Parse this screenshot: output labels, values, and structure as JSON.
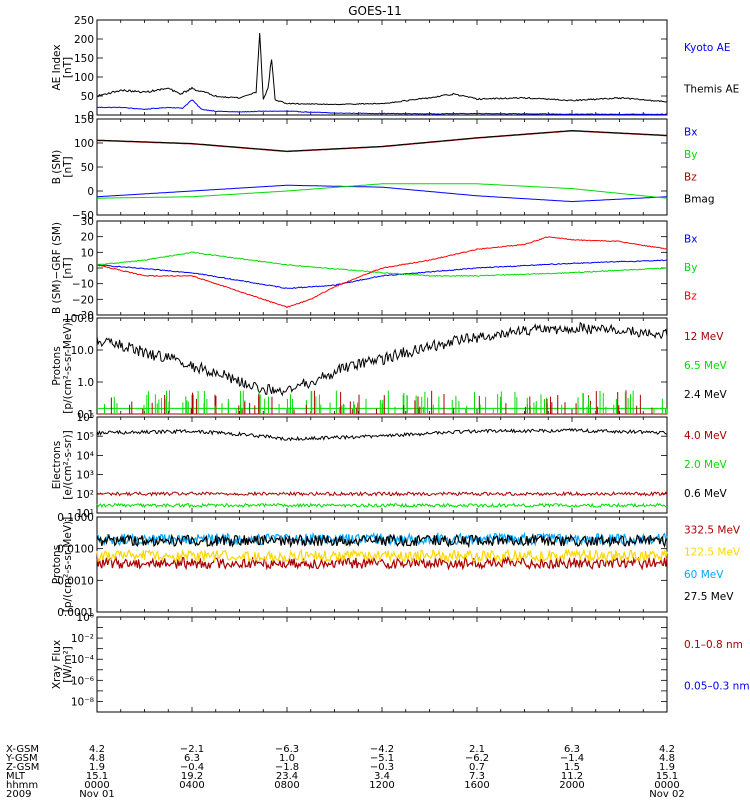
{
  "title": "GOES-11",
  "colors": {
    "black": "#000000",
    "blue": "#0000ff",
    "green": "#00dd00",
    "red": "#ff0000",
    "darkred": "#aa0000",
    "yellow": "#ffd700",
    "cyan": "#00a8ff"
  },
  "chart_data": [
    {
      "type": "line",
      "ylabel": [
        "AE Index",
        "[nT]"
      ],
      "ylim": [
        0,
        250
      ],
      "scale": "linear",
      "ticks": [
        0,
        50,
        100,
        150,
        200,
        250
      ],
      "labels": [
        "0",
        "50",
        "100",
        "150",
        "200",
        "250"
      ],
      "series": [
        {
          "name": "Kyoto AE",
          "color": "#0000ff",
          "x": [
            0,
            1,
            2,
            3,
            3.6,
            4,
            4.4,
            5,
            6,
            7,
            8,
            10,
            12,
            14,
            16,
            18,
            20,
            22,
            24
          ],
          "y": [
            20,
            20,
            15,
            20,
            18,
            40,
            15,
            10,
            8,
            10,
            10,
            5,
            4,
            3,
            4,
            3,
            2,
            2,
            2
          ]
        },
        {
          "name": "Themis AE",
          "color": "#000000",
          "x": [
            0,
            1,
            2,
            3,
            3.5,
            4,
            5,
            6,
            6.7,
            6.85,
            7.0,
            7.2,
            7.35,
            7.5,
            8,
            10,
            12,
            14,
            15,
            16,
            18,
            20,
            22,
            24
          ],
          "y": [
            50,
            65,
            60,
            70,
            55,
            70,
            50,
            45,
            60,
            220,
            40,
            70,
            150,
            40,
            30,
            28,
            30,
            45,
            55,
            42,
            45,
            38,
            45,
            35
          ]
        }
      ],
      "legend_color": "#000000"
    },
    {
      "type": "line",
      "ylabel": [
        "B (SM)",
        "[nT]"
      ],
      "ylim": [
        -50,
        150
      ],
      "scale": "linear",
      "ticks": [
        -50,
        0,
        50,
        100,
        150
      ],
      "labels": [
        "−50",
        "0",
        "50",
        "100",
        "150"
      ],
      "series": [
        {
          "name": "Bx",
          "color": "#0000ff",
          "x": [
            0,
            4,
            8,
            12,
            16,
            20,
            24
          ],
          "y": [
            -12,
            0,
            12,
            8,
            -10,
            -22,
            -12
          ]
        },
        {
          "name": "By",
          "color": "#00dd00",
          "x": [
            0,
            4,
            8,
            12,
            16,
            20,
            24
          ],
          "y": [
            -15,
            -12,
            0,
            15,
            15,
            5,
            -15
          ]
        },
        {
          "name": "Bz",
          "color": "#aa0000",
          "x": [
            0,
            4,
            8,
            12,
            16,
            20,
            24
          ],
          "y": [
            105,
            98,
            82,
            92,
            110,
            125,
            115
          ]
        },
        {
          "name": "Bmag",
          "color": "#000000",
          "x": [
            0,
            4,
            8,
            12,
            16,
            20,
            24
          ],
          "y": [
            106,
            99,
            83,
            93,
            111,
            126,
            116
          ]
        }
      ]
    },
    {
      "type": "line",
      "ylabel": [
        "B (SM)−GRF (SM)",
        "[nT]"
      ],
      "ylim": [
        -30,
        30
      ],
      "scale": "linear",
      "ticks": [
        -30,
        -20,
        -10,
        0,
        10,
        20,
        30
      ],
      "labels": [
        "−30",
        "−20",
        "−10",
        "0",
        "10",
        "20",
        "30"
      ],
      "series": [
        {
          "name": "Bx",
          "color": "#0000ff",
          "x": [
            0,
            4,
            8,
            10,
            12,
            16,
            20,
            24
          ],
          "y": [
            2,
            -3,
            -13,
            -11,
            -5,
            0,
            3,
            5
          ]
        },
        {
          "name": "By",
          "color": "#00dd00",
          "x": [
            0,
            2,
            4,
            8,
            12,
            14,
            16,
            20,
            24
          ],
          "y": [
            2,
            5,
            10,
            2,
            -3,
            -5,
            -5,
            -3,
            0
          ]
        },
        {
          "name": "Bz",
          "color": "#ff0000",
          "x": [
            0,
            2,
            4,
            6,
            8,
            9,
            10,
            12,
            14,
            16,
            18,
            19,
            20,
            22,
            24
          ],
          "y": [
            2,
            -5,
            -5,
            -15,
            -25,
            -20,
            -12,
            0,
            5,
            12,
            15,
            20,
            18,
            17,
            12
          ]
        }
      ]
    },
    {
      "type": "line",
      "ylabel": [
        "Protons",
        "[p/(cm²-s-sr-MeV)]"
      ],
      "ylim": [
        0.1,
        100
      ],
      "scale": "log",
      "ticks": [
        0.1,
        1,
        10,
        100
      ],
      "labels": [
        "0.1",
        "1.0",
        "10.0",
        "100.0"
      ],
      "series": [
        {
          "name": "12 MeV",
          "color": "#aa0000",
          "x": [
            0,
            24
          ],
          "y": [
            0.1,
            0.1
          ]
        },
        {
          "name": "6.5 MeV",
          "color": "#00dd00",
          "x": [
            0,
            24
          ],
          "y": [
            0.15,
            0.15
          ]
        },
        {
          "name": "2.4 MeV",
          "color": "#000000",
          "x": [
            0,
            2,
            4,
            6,
            7,
            8,
            9,
            10,
            12,
            14,
            16,
            18,
            20,
            22,
            24
          ],
          "y": [
            20,
            8,
            3,
            1,
            0.6,
            0.5,
            1,
            2,
            5,
            12,
            25,
            40,
            50,
            40,
            30
          ]
        }
      ]
    },
    {
      "type": "line",
      "ylabel": [
        "Electrons",
        "[e/(cm²-s-sr)]"
      ],
      "ylim": [
        10,
        1000000
      ],
      "scale": "log",
      "ticks": [
        10,
        100,
        1000,
        10000,
        100000,
        1000000
      ],
      "labels": [
        "10¹",
        "10²",
        "10³",
        "10⁴",
        "10⁵",
        "10⁶"
      ],
      "series": [
        {
          "name": "4.0 MeV",
          "color": "#aa0000",
          "x": [
            0,
            24
          ],
          "y": [
            100,
            100
          ]
        },
        {
          "name": "2.0 MeV",
          "color": "#00dd00",
          "x": [
            0,
            24
          ],
          "y": [
            25,
            25
          ]
        },
        {
          "name": "0.6 MeV",
          "color": "#000000",
          "x": [
            0,
            4,
            8,
            12,
            16,
            20,
            24
          ],
          "y": [
            150000,
            180000,
            70000,
            100000,
            180000,
            200000,
            150000
          ]
        }
      ]
    },
    {
      "type": "line",
      "ylabel": [
        "Protons",
        "[p/(cm²-s-sr-MeV)]"
      ],
      "ylim": [
        0.0001,
        0.1
      ],
      "scale": "log",
      "ticks": [
        0.0001,
        0.001,
        0.01,
        0.1
      ],
      "labels": [
        "0.0001",
        "0.0010",
        "0.0100",
        "0.1000"
      ],
      "series": [
        {
          "name": "332.5 MeV",
          "color": "#aa0000",
          "x": [
            0,
            24
          ],
          "y": [
            0.0035,
            0.0035
          ]
        },
        {
          "name": "122.5 MeV",
          "color": "#ffd700",
          "x": [
            0,
            24
          ],
          "y": [
            0.006,
            0.006
          ]
        },
        {
          "name": "60 MeV",
          "color": "#00a8ff",
          "x": [
            0,
            24
          ],
          "y": [
            0.02,
            0.02
          ]
        },
        {
          "name": "27.5 MeV",
          "color": "#000000",
          "x": [
            0,
            24
          ],
          "y": [
            0.018,
            0.018
          ]
        }
      ]
    },
    {
      "type": "line",
      "ylabel": [
        "Xray Flux",
        "[W/m²]"
      ],
      "ylim": [
        1e-09,
        1
      ],
      "scale": "log",
      "ticks": [
        1e-09,
        1e-08,
        1e-07,
        1e-06,
        1e-05,
        0.0001,
        0.001,
        0.01,
        0.1,
        1
      ],
      "labels": [
        "",
        "10⁻⁸",
        "",
        "10⁻⁶",
        "",
        "10⁻⁴",
        "",
        "10⁻²",
        "",
        "10⁰"
      ],
      "series": [
        {
          "name": "0.1–0.8 nm",
          "color": "#aa0000",
          "x": [],
          "y": []
        },
        {
          "name": "0.05–0.3 nm",
          "color": "#0000ff",
          "x": [],
          "y": []
        }
      ]
    }
  ],
  "x_axis": {
    "row_labels": [
      "X-GSM",
      "Y-GSM",
      "Z-GSM",
      "MLT",
      "hhmm",
      "2009"
    ],
    "columns": [
      [
        "4.2",
        "4.8",
        "1.9",
        "15.1",
        "0000",
        "Nov 01"
      ],
      [
        "−2.1",
        "6.3",
        "−0.4",
        "19.2",
        "0400",
        ""
      ],
      [
        "−6.3",
        "1.0",
        "−1.8",
        "23.4",
        "0800",
        ""
      ],
      [
        "−4.2",
        "−5.1",
        "−0.3",
        "3.4",
        "1200",
        ""
      ],
      [
        "2.1",
        "−6.2",
        "0.7",
        "7.3",
        "1600",
        ""
      ],
      [
        "6.3",
        "−1.4",
        "1.5",
        "11.2",
        "2000",
        ""
      ],
      [
        "4.2",
        "4.8",
        "1.9",
        "15.1",
        "0000",
        "Nov 02"
      ]
    ]
  }
}
